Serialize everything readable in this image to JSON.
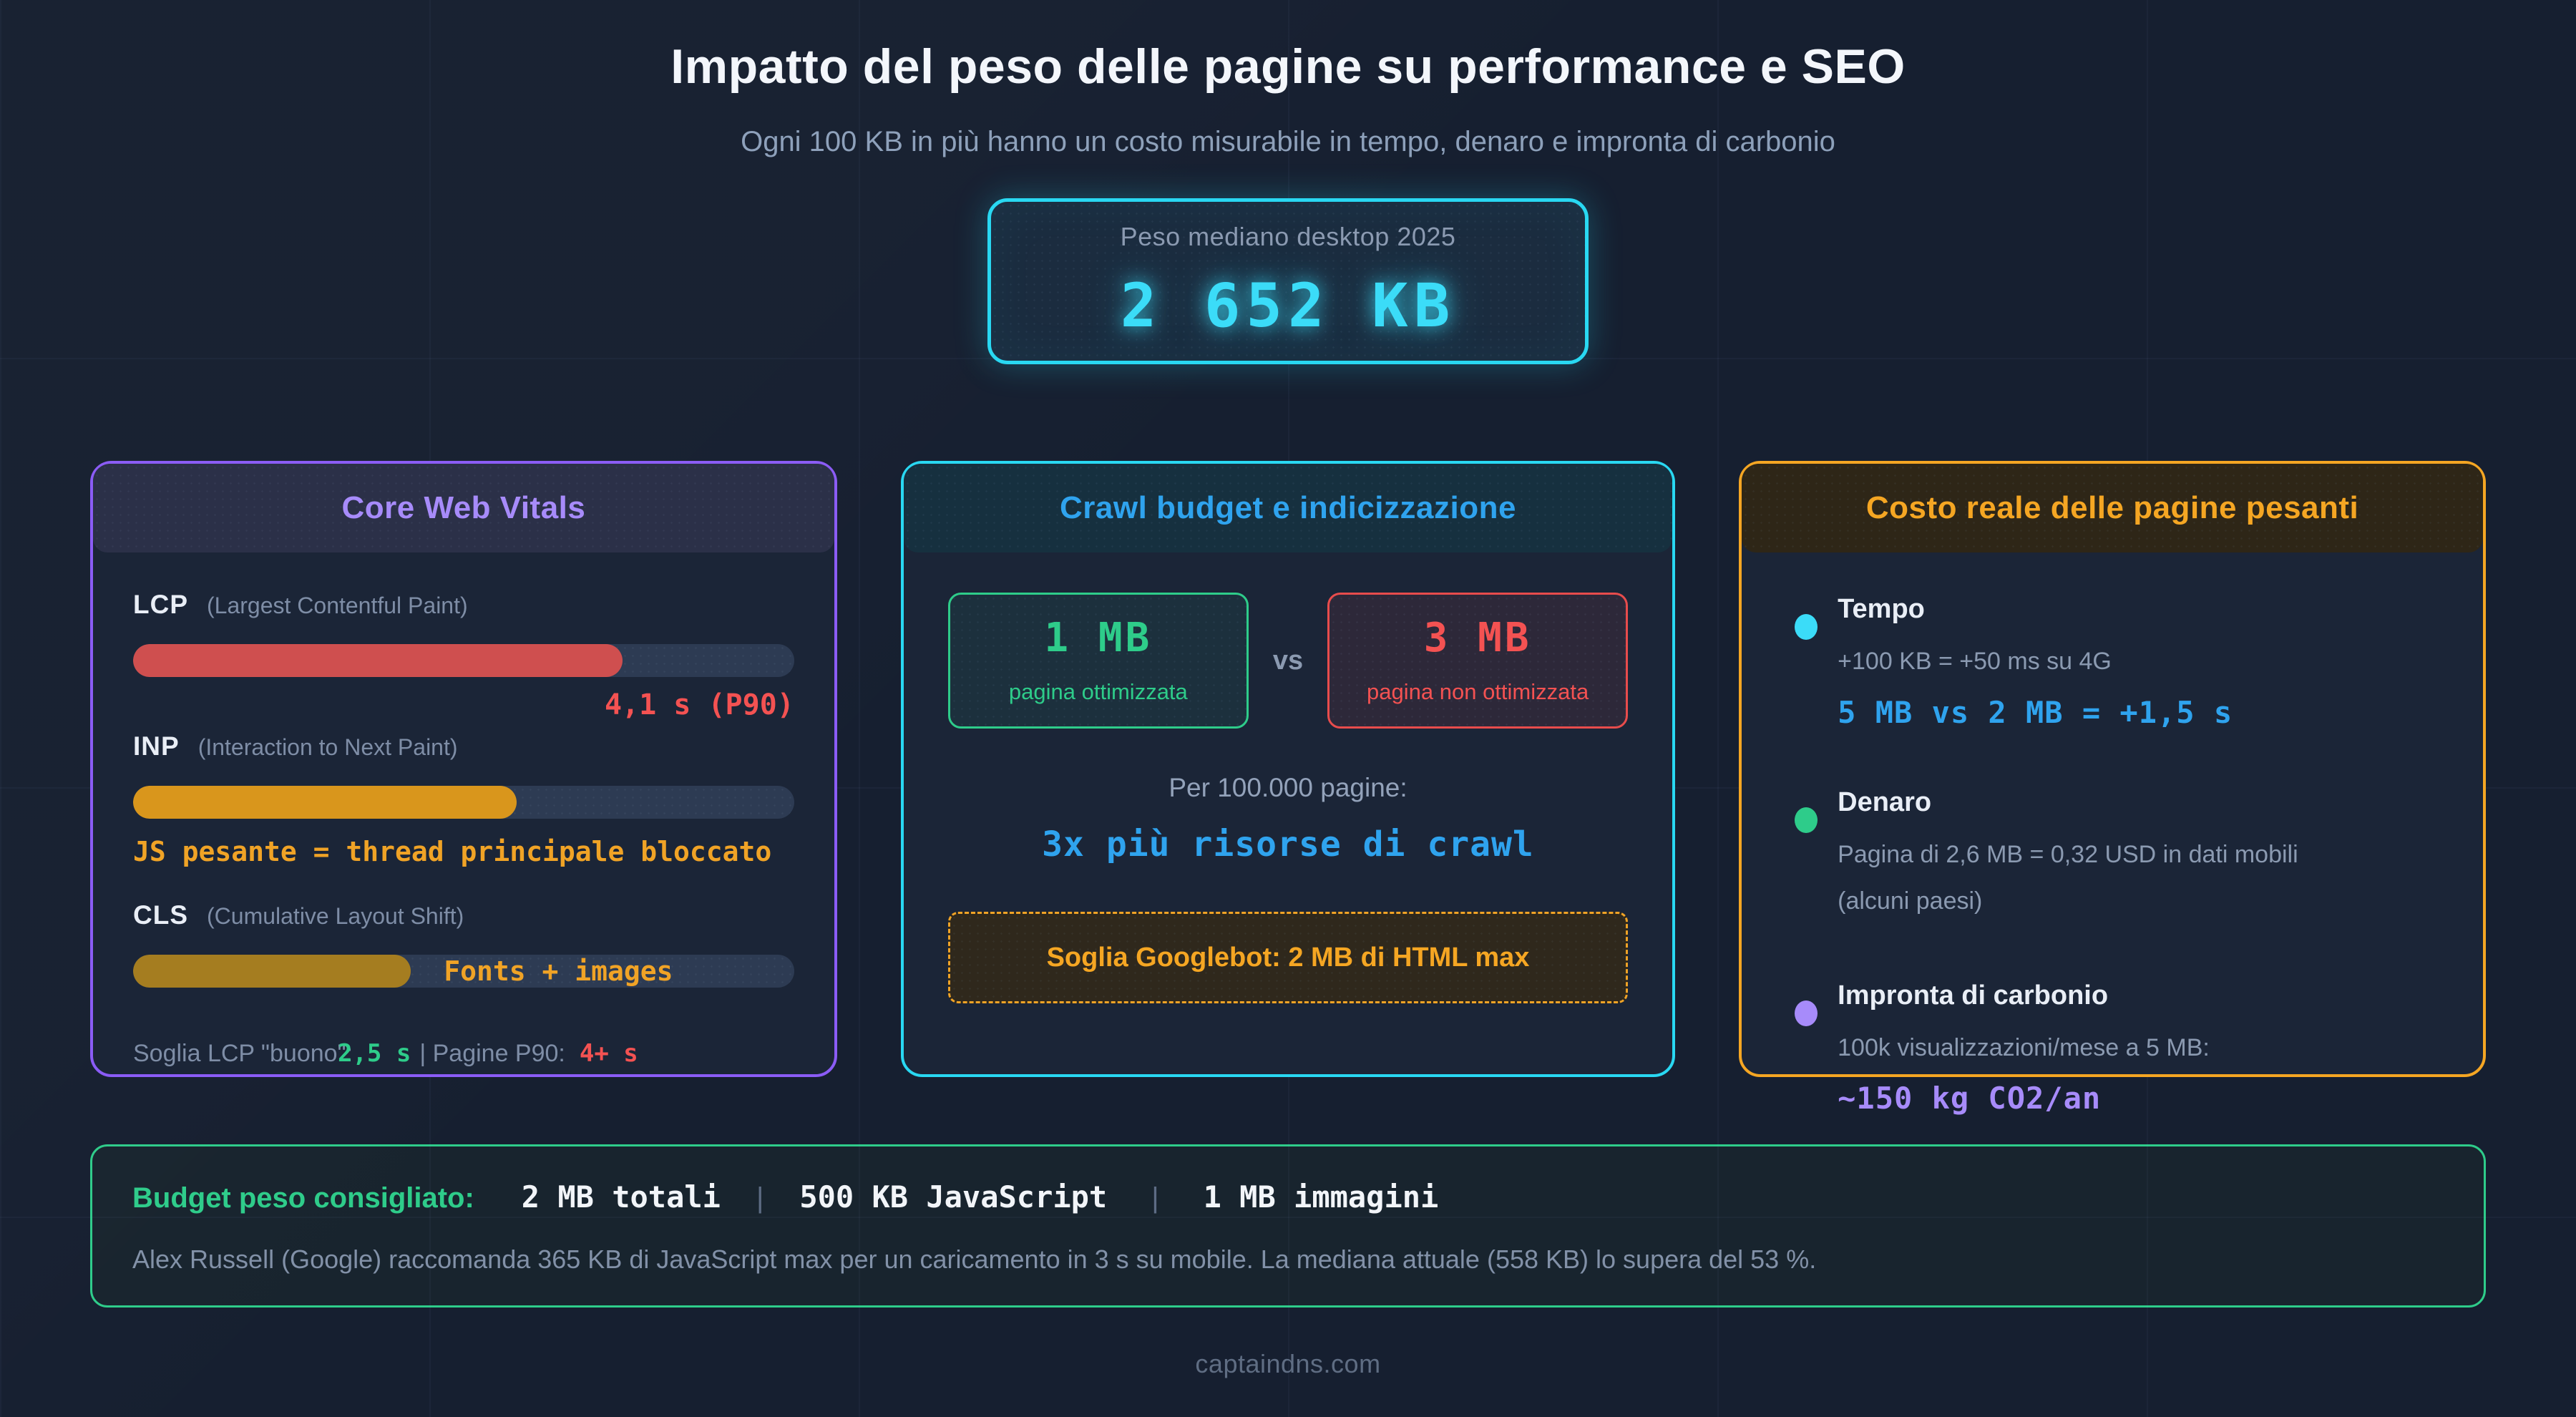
{
  "page": {
    "title": "Impatto del peso delle pagine su performance e SEO",
    "subtitle": "Ogni 100 KB in più hanno un costo misurabile in tempo, denaro e impronta di carbonio",
    "footer": "captaindns.com"
  },
  "badge": {
    "label": "Peso mediano desktop 2025",
    "value": "2 652 KB"
  },
  "cards": {
    "cwv": {
      "title": "Core Web Vitals",
      "metrics": [
        {
          "abbr": "LCP",
          "full": "(Largest Contentful Paint)",
          "fill_pct": 74,
          "value": "4,1 s (P90)"
        },
        {
          "abbr": "INP",
          "full": "(Interaction to Next Paint)",
          "fill_pct": 58,
          "note": "JS pesante = thread principale bloccato"
        },
        {
          "abbr": "CLS",
          "full": "(Cumulative Layout Shift)",
          "fill_pct": 42,
          "overlay": "Fonts + images"
        }
      ],
      "footnote": {
        "prefix": "Soglia LCP \"buono\":",
        "good": "2,5 s",
        "mid": "| Pagine P90:",
        "bad": "4+ s"
      }
    },
    "crawl": {
      "title": "Crawl budget e indicizzazione",
      "optimized": {
        "value": "1 MB",
        "label": "pagina ottimizzata"
      },
      "vs": "vs",
      "unoptimized": {
        "value": "3 MB",
        "label": "pagina non ottimizzata"
      },
      "per_pages": "Per 100.000 pagine:",
      "crawl_cost": "3x più risorse di crawl",
      "threshold": "Soglia Googlebot: 2 MB di HTML max"
    },
    "cost": {
      "title": "Costo reale delle pagine pesanti",
      "items": [
        {
          "title": "Tempo",
          "desc": "+100 KB = +50 ms su 4G",
          "value": "5 MB vs 2 MB = +1,5 s"
        },
        {
          "title": "Denaro",
          "desc": "Pagina di 2,6 MB = 0,32 USD in dati mobili",
          "desc2": "(alcuni paesi)"
        },
        {
          "title": "Impronta di carbonio",
          "desc": "100k visualizzazioni/mese a 5 MB:",
          "value": "~150 kg CO2/an"
        }
      ]
    }
  },
  "banner": {
    "label": "Budget peso consigliato:",
    "items": [
      "2 MB totali",
      "500 KB JavaScript",
      "1 MB immagini"
    ],
    "separator": "|",
    "note": "Alex Russell (Google) raccomanda 365 KB di JavaScript max per un caricamento in 3 s su mobile. La mediana attuale (558 KB) lo supera del 53 %."
  },
  "colors": {
    "bg": "#161f30",
    "panel": "#1b2537",
    "ink": "#eef2f8",
    "muted": "#8b9ab1",
    "purple": "#8b5cf6",
    "purple_light": "#a78bfa",
    "cyan": "#29d8f2",
    "cyan_bright": "#3bdcf8",
    "blue": "#2fa3ee",
    "orange": "#f0a326",
    "amber": "#f5a623",
    "red": "#e84c4c",
    "red_bright": "#f45252",
    "green": "#2ecc8a",
    "track": "#2d3b53",
    "bar_red": "#cf4f4f",
    "bar_orange": "#d9961c",
    "bar_olive": "#a57d20"
  }
}
